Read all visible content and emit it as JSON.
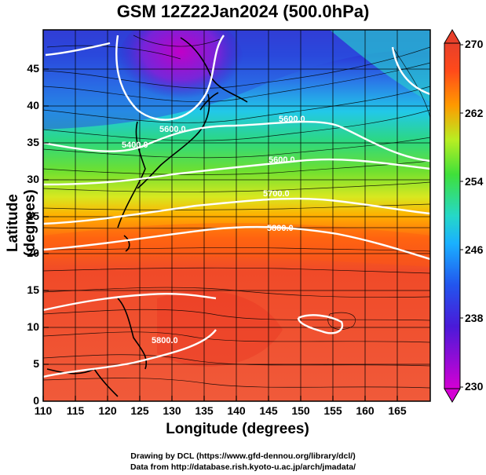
{
  "figure": {
    "title": "GSM 12Z22Jan2024 (500.0hPa)",
    "xlabel": "Longitude (degrees)",
    "ylabel": "Latitude (degrees)",
    "credit_line1": "Drawing by DCL (https://www.gfd-dennou.org/library/dcl/)",
    "credit_line2": "Data from http://database.rish.kyoto-u.ac.jp/arch/jmadata/"
  },
  "axes": {
    "x_ticks": [
      "110",
      "115",
      "120",
      "125",
      "130",
      "135",
      "140",
      "145",
      "150",
      "155",
      "160",
      "165"
    ],
    "y_ticks": [
      "0",
      "5",
      "10",
      "15",
      "20",
      "25",
      "30",
      "35",
      "40",
      "45"
    ],
    "x_range": [
      110,
      170
    ],
    "y_range": [
      0,
      50
    ]
  },
  "colorbar": {
    "ticks": [
      "230",
      "238",
      "246",
      "254",
      "262",
      "270"
    ],
    "range": [
      230,
      270
    ],
    "colors": [
      "#d400d4",
      "#3a2ad8",
      "#1aa8ff",
      "#2fd7c0",
      "#3fe03a",
      "#b8ee22",
      "#ff9a00",
      "#ff3a1a",
      "#e8402a"
    ]
  },
  "contour_labels": [
    {
      "text": "5400.0"
    },
    {
      "text": "5600.0"
    },
    {
      "text": "5600.0"
    },
    {
      "text": "5600.0"
    },
    {
      "text": "5700.0"
    },
    {
      "text": "5800.0"
    },
    {
      "text": "5800.0"
    }
  ]
}
